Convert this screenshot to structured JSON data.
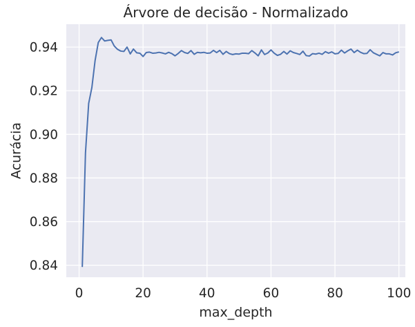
{
  "chart_data": {
    "type": "line",
    "title": "Árvore de decisão - Normalizado",
    "xlabel": "max_depth",
    "ylabel": "Acurácia",
    "xlim": [
      -4,
      102
    ],
    "ylim": [
      0.8345,
      0.9505
    ],
    "grid": true,
    "x_ticks": [
      0,
      20,
      40,
      60,
      80,
      100
    ],
    "x_tick_labels": [
      "0",
      "20",
      "40",
      "60",
      "80",
      "100"
    ],
    "y_ticks": [
      0.84,
      0.86,
      0.88,
      0.9,
      0.92,
      0.94
    ],
    "y_tick_labels": [
      "0.84",
      "0.86",
      "0.88",
      "0.90",
      "0.92",
      "0.94"
    ],
    "colors": {
      "line": "#4c72b0",
      "background": "#eaeaf2",
      "grid": "#ffffff"
    },
    "series": [
      {
        "x": [
          1,
          2,
          3,
          4,
          5,
          6,
          7,
          8,
          9,
          10,
          11,
          12,
          13,
          14,
          15,
          16,
          17,
          18,
          19,
          20,
          21,
          22,
          23,
          24,
          25,
          26,
          27,
          28,
          29,
          30,
          31,
          32,
          33,
          34,
          35,
          36,
          37,
          38,
          39,
          40,
          41,
          42,
          43,
          44,
          45,
          46,
          47,
          48,
          49,
          50,
          51,
          52,
          53,
          54,
          55,
          56,
          57,
          58,
          59,
          60,
          61,
          62,
          63,
          64,
          65,
          66,
          67,
          68,
          69,
          70,
          71,
          72,
          73,
          74,
          75,
          76,
          77,
          78,
          79,
          80,
          81,
          82,
          83,
          84,
          85,
          86,
          87,
          88,
          89,
          90,
          91,
          92,
          93,
          94,
          95,
          96,
          97,
          98,
          99,
          100
        ],
        "values": [
          0.8392,
          0.8915,
          0.9142,
          0.9215,
          0.9338,
          0.9421,
          0.9444,
          0.9428,
          0.9431,
          0.9433,
          0.9405,
          0.939,
          0.9382,
          0.938,
          0.94,
          0.9369,
          0.9391,
          0.9374,
          0.9372,
          0.9357,
          0.9375,
          0.9377,
          0.9372,
          0.9373,
          0.9376,
          0.9373,
          0.9369,
          0.9376,
          0.937,
          0.936,
          0.9371,
          0.9384,
          0.9375,
          0.9371,
          0.9384,
          0.9367,
          0.9376,
          0.9374,
          0.9376,
          0.9372,
          0.9373,
          0.9385,
          0.9375,
          0.9385,
          0.9367,
          0.938,
          0.937,
          0.9366,
          0.9369,
          0.9368,
          0.9372,
          0.9372,
          0.937,
          0.9384,
          0.9373,
          0.936,
          0.9387,
          0.9366,
          0.9373,
          0.9387,
          0.9372,
          0.9362,
          0.9367,
          0.938,
          0.9368,
          0.9383,
          0.9375,
          0.9371,
          0.9366,
          0.9381,
          0.9361,
          0.9359,
          0.937,
          0.9368,
          0.9372,
          0.9367,
          0.9379,
          0.9372,
          0.9378,
          0.9369,
          0.9371,
          0.9386,
          0.9373,
          0.9383,
          0.9391,
          0.9375,
          0.9386,
          0.9376,
          0.937,
          0.9371,
          0.9388,
          0.9374,
          0.9367,
          0.936,
          0.9375,
          0.9369,
          0.9369,
          0.9364,
          0.9374,
          0.9378
        ]
      }
    ]
  }
}
